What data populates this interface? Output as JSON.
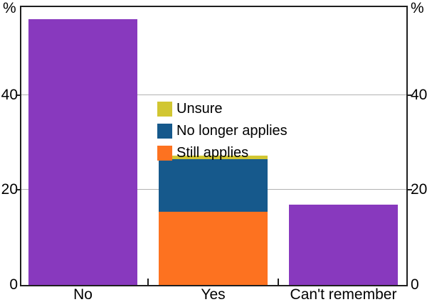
{
  "chart_data": {
    "type": "bar",
    "stacked": true,
    "title": "",
    "unit": "%",
    "categories": [
      "No",
      "Yes",
      "Can't remember"
    ],
    "series": [
      {
        "name": "Response",
        "color": "#8839be",
        "values": [
          56,
          0,
          16.9
        ],
        "in_legend": false
      },
      {
        "name": "Still applies",
        "color": "#fd7220",
        "values": [
          0,
          15.4,
          0
        ],
        "in_legend": true
      },
      {
        "name": "No longer applies",
        "color": "#16598c",
        "values": [
          0,
          11.1,
          0
        ],
        "in_legend": true
      },
      {
        "name": "Unsure",
        "color": "#d1c632",
        "values": [
          0,
          0.8,
          0
        ],
        "in_legend": true
      }
    ],
    "y_ticks": [
      0,
      20,
      40
    ],
    "ylim": [
      0,
      58.5
    ],
    "grid": "horizontal",
    "axis_unit_left": "%",
    "axis_unit_right": "%",
    "legend": {
      "position": "center",
      "items_top_to_bottom": [
        "Unsure",
        "No longer applies",
        "Still applies"
      ]
    }
  }
}
